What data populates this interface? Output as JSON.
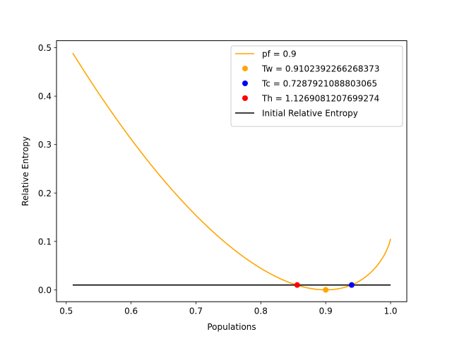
{
  "chart_data": {
    "type": "line",
    "xlabel": "Populations",
    "ylabel": "Relative Entropy",
    "xlim": [
      0.485,
      1.025
    ],
    "ylim": [
      -0.0245,
      0.5145
    ],
    "x_ticks": [
      "0.5",
      "0.6",
      "0.7",
      "0.8",
      "0.9",
      "1.0"
    ],
    "x_tick_values": [
      0.5,
      0.6,
      0.7,
      0.8,
      0.9,
      1.0
    ],
    "y_ticks": [
      "0.0",
      "0.1",
      "0.2",
      "0.3",
      "0.4",
      "0.5"
    ],
    "y_tick_values": [
      0.0,
      0.1,
      0.2,
      0.3,
      0.4,
      0.5
    ],
    "legend_position": "upper-right",
    "series": [
      {
        "name": "pf = 0.9",
        "kind": "line",
        "color": "#ffa500",
        "pf": 0.9,
        "x_range": [
          0.51,
          1.0
        ]
      },
      {
        "name": "Tw = 0.9102392266268373",
        "kind": "point",
        "color": "#ffa500",
        "x": 0.9,
        "y": 0.0
      },
      {
        "name": "Tc = 0.7287921088803065",
        "kind": "point",
        "color": "#0000ff",
        "x": 0.94,
        "y": 0.01
      },
      {
        "name": "Th = 1.1269081207699274",
        "kind": "point",
        "color": "#ff0000",
        "x": 0.856,
        "y": 0.01
      },
      {
        "name": "Initial Relative Entropy",
        "kind": "hline",
        "color": "#000000",
        "y": 0.01,
        "x_range": [
          0.51,
          1.0
        ]
      }
    ]
  }
}
